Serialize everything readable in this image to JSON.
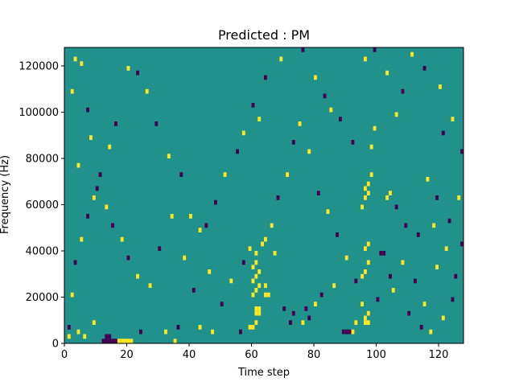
{
  "chart_data": {
    "type": "heatmap",
    "title": "Predicted : PM",
    "xlabel": "Time step",
    "ylabel": "Frequency (Hz)",
    "xlim": [
      0,
      128
    ],
    "ylim": [
      0,
      128000
    ],
    "x_ticks": [
      0,
      20,
      40,
      60,
      80,
      100,
      120
    ],
    "y_ticks": [
      0,
      20000,
      40000,
      60000,
      80000,
      100000,
      120000
    ],
    "grid": false,
    "legend": "none",
    "colormap": "viridis",
    "color_levels": {
      "low": "#440154",
      "mid": "#21918c",
      "high": "#fde725"
    },
    "background_value": "mid",
    "bin_width_hz": 2000,
    "cells": [
      {
        "t": 12,
        "f": 2000,
        "v": "low"
      },
      {
        "t": 13,
        "f": 2000,
        "v": "low"
      },
      {
        "t": 14,
        "f": 2000,
        "v": "low"
      },
      {
        "t": 15,
        "f": 2000,
        "v": "low"
      },
      {
        "t": 16,
        "f": 2000,
        "v": "low"
      },
      {
        "t": 13,
        "f": 4000,
        "v": "low"
      },
      {
        "t": 14,
        "f": 4000,
        "v": "low"
      },
      {
        "t": 17,
        "f": 2000,
        "v": "high"
      },
      {
        "t": 18,
        "f": 2000,
        "v": "high"
      },
      {
        "t": 19,
        "f": 2000,
        "v": "high"
      },
      {
        "t": 20,
        "f": 2000,
        "v": "high"
      },
      {
        "t": 21,
        "f": 2000,
        "v": "high"
      },
      {
        "t": 1,
        "f": 4000,
        "v": "high"
      },
      {
        "t": 4,
        "f": 6000,
        "v": "high"
      },
      {
        "t": 6,
        "f": 4000,
        "v": "high"
      },
      {
        "t": 9,
        "f": 10000,
        "v": "high"
      },
      {
        "t": 24,
        "f": 6000,
        "v": "low"
      },
      {
        "t": 32,
        "f": 6000,
        "v": "high"
      },
      {
        "t": 35,
        "f": 2000,
        "v": "high"
      },
      {
        "t": 36,
        "f": 8000,
        "v": "low"
      },
      {
        "t": 43,
        "f": 8000,
        "v": "high"
      },
      {
        "t": 47,
        "f": 6000,
        "v": "high"
      },
      {
        "t": 56,
        "f": 6000,
        "v": "low"
      },
      {
        "t": 59,
        "f": 8000,
        "v": "high"
      },
      {
        "t": 60,
        "f": 8000,
        "v": "high"
      },
      {
        "t": 61,
        "f": 10000,
        "v": "high"
      },
      {
        "t": 61,
        "f": 14000,
        "v": "high"
      },
      {
        "t": 62,
        "f": 14000,
        "v": "high"
      },
      {
        "t": 61,
        "f": 16000,
        "v": "high"
      },
      {
        "t": 62,
        "f": 16000,
        "v": "high"
      },
      {
        "t": 60,
        "f": 22000,
        "v": "high"
      },
      {
        "t": 61,
        "f": 24000,
        "v": "high"
      },
      {
        "t": 62,
        "f": 26000,
        "v": "high"
      },
      {
        "t": 60,
        "f": 28000,
        "v": "high"
      },
      {
        "t": 61,
        "f": 30000,
        "v": "high"
      },
      {
        "t": 62,
        "f": 32000,
        "v": "high"
      },
      {
        "t": 60,
        "f": 34000,
        "v": "high"
      },
      {
        "t": 61,
        "f": 36000,
        "v": "high"
      },
      {
        "t": 61,
        "f": 40000,
        "v": "high"
      },
      {
        "t": 59,
        "f": 42000,
        "v": "high"
      },
      {
        "t": 64,
        "f": 22000,
        "v": "high"
      },
      {
        "t": 65,
        "f": 22000,
        "v": "high"
      },
      {
        "t": 64,
        "f": 26000,
        "v": "high"
      },
      {
        "t": 63,
        "f": 44000,
        "v": "high"
      },
      {
        "t": 64,
        "f": 46000,
        "v": "high"
      },
      {
        "t": 67,
        "f": 40000,
        "v": "high"
      },
      {
        "t": 70,
        "f": 16000,
        "v": "low"
      },
      {
        "t": 72,
        "f": 10000,
        "v": "low"
      },
      {
        "t": 73,
        "f": 14000,
        "v": "low"
      },
      {
        "t": 76,
        "f": 10000,
        "v": "high"
      },
      {
        "t": 77,
        "f": 16000,
        "v": "low"
      },
      {
        "t": 78,
        "f": 12000,
        "v": "low"
      },
      {
        "t": 80,
        "f": 18000,
        "v": "high"
      },
      {
        "t": 82,
        "f": 22000,
        "v": "low"
      },
      {
        "t": 86,
        "f": 26000,
        "v": "high"
      },
      {
        "t": 89,
        "f": 6000,
        "v": "low"
      },
      {
        "t": 90,
        "f": 6000,
        "v": "low"
      },
      {
        "t": 91,
        "f": 6000,
        "v": "low"
      },
      {
        "t": 92,
        "f": 6000,
        "v": "high"
      },
      {
        "t": 93,
        "f": 10000,
        "v": "high"
      },
      {
        "t": 95,
        "f": 18000,
        "v": "high"
      },
      {
        "t": 96,
        "f": 10000,
        "v": "high"
      },
      {
        "t": 97,
        "f": 10000,
        "v": "high"
      },
      {
        "t": 96,
        "f": 12000,
        "v": "high"
      },
      {
        "t": 97,
        "f": 14000,
        "v": "high"
      },
      {
        "t": 95,
        "f": 30000,
        "v": "high"
      },
      {
        "t": 96,
        "f": 32000,
        "v": "high"
      },
      {
        "t": 97,
        "f": 36000,
        "v": "high"
      },
      {
        "t": 96,
        "f": 42000,
        "v": "high"
      },
      {
        "t": 97,
        "f": 44000,
        "v": "high"
      },
      {
        "t": 95,
        "f": 60000,
        "v": "high"
      },
      {
        "t": 96,
        "f": 64000,
        "v": "high"
      },
      {
        "t": 97,
        "f": 66000,
        "v": "high"
      },
      {
        "t": 96,
        "f": 68000,
        "v": "high"
      },
      {
        "t": 97,
        "f": 70000,
        "v": "high"
      },
      {
        "t": 98,
        "f": 74000,
        "v": "high"
      },
      {
        "t": 98,
        "f": 86000,
        "v": "high"
      },
      {
        "t": 101,
        "f": 40000,
        "v": "low"
      },
      {
        "t": 102,
        "f": 40000,
        "v": "low"
      },
      {
        "t": 104,
        "f": 30000,
        "v": "low"
      },
      {
        "t": 103,
        "f": 64000,
        "v": "high"
      },
      {
        "t": 104,
        "f": 66000,
        "v": "high"
      },
      {
        "t": 106,
        "f": 60000,
        "v": "low"
      },
      {
        "t": 109,
        "f": 52000,
        "v": "low"
      },
      {
        "t": 110,
        "f": 14000,
        "v": "low"
      },
      {
        "t": 114,
        "f": 8000,
        "v": "low"
      },
      {
        "t": 117,
        "f": 6000,
        "v": "high"
      },
      {
        "t": 121,
        "f": 12000,
        "v": "high"
      },
      {
        "t": 124,
        "f": 20000,
        "v": "low"
      },
      {
        "t": 125,
        "f": 30000,
        "v": "low"
      },
      {
        "t": 127,
        "f": 44000,
        "v": "low"
      },
      {
        "t": 122,
        "f": 42000,
        "v": "high"
      },
      {
        "t": 118,
        "f": 52000,
        "v": "high"
      },
      {
        "t": 113,
        "f": 48000,
        "v": "low"
      },
      {
        "t": 116,
        "f": 72000,
        "v": "high"
      },
      {
        "t": 119,
        "f": 64000,
        "v": "low"
      },
      {
        "t": 127,
        "f": 84000,
        "v": "low"
      },
      {
        "t": 121,
        "f": 92000,
        "v": "low"
      },
      {
        "t": 124,
        "f": 98000,
        "v": "high"
      },
      {
        "t": 120,
        "f": 112000,
        "v": "high"
      },
      {
        "t": 115,
        "f": 120000,
        "v": "low"
      },
      {
        "t": 111,
        "f": 126000,
        "v": "high"
      },
      {
        "t": 99,
        "f": 128000,
        "v": "low"
      },
      {
        "t": 96,
        "f": 124000,
        "v": "high"
      },
      {
        "t": 103,
        "f": 118000,
        "v": "high"
      },
      {
        "t": 108,
        "f": 110000,
        "v": "low"
      },
      {
        "t": 106,
        "f": 100000,
        "v": "high"
      },
      {
        "t": 99,
        "f": 94000,
        "v": "high"
      },
      {
        "t": 92,
        "f": 88000,
        "v": "low"
      },
      {
        "t": 88,
        "f": 98000,
        "v": "low"
      },
      {
        "t": 85,
        "f": 102000,
        "v": "high"
      },
      {
        "t": 83,
        "f": 108000,
        "v": "low"
      },
      {
        "t": 80,
        "f": 116000,
        "v": "high"
      },
      {
        "t": 76,
        "f": 128000,
        "v": "low"
      },
      {
        "t": 69,
        "f": 124000,
        "v": "high"
      },
      {
        "t": 64,
        "f": 116000,
        "v": "low"
      },
      {
        "t": 62,
        "f": 98000,
        "v": "high"
      },
      {
        "t": 60,
        "f": 104000,
        "v": "low"
      },
      {
        "t": 57,
        "f": 92000,
        "v": "high"
      },
      {
        "t": 55,
        "f": 84000,
        "v": "low"
      },
      {
        "t": 51,
        "f": 74000,
        "v": "high"
      },
      {
        "t": 48,
        "f": 62000,
        "v": "low"
      },
      {
        "t": 45,
        "f": 52000,
        "v": "low"
      },
      {
        "t": 43,
        "f": 50000,
        "v": "high"
      },
      {
        "t": 40,
        "f": 56000,
        "v": "high"
      },
      {
        "t": 37,
        "f": 74000,
        "v": "low"
      },
      {
        "t": 33,
        "f": 82000,
        "v": "high"
      },
      {
        "t": 29,
        "f": 96000,
        "v": "low"
      },
      {
        "t": 26,
        "f": 110000,
        "v": "high"
      },
      {
        "t": 23,
        "f": 118000,
        "v": "low"
      },
      {
        "t": 20,
        "f": 120000,
        "v": "high"
      },
      {
        "t": 16,
        "f": 96000,
        "v": "low"
      },
      {
        "t": 14,
        "f": 86000,
        "v": "high"
      },
      {
        "t": 11,
        "f": 74000,
        "v": "low"
      },
      {
        "t": 9,
        "f": 64000,
        "v": "high"
      },
      {
        "t": 7,
        "f": 56000,
        "v": "low"
      },
      {
        "t": 5,
        "f": 46000,
        "v": "high"
      },
      {
        "t": 3,
        "f": 36000,
        "v": "low"
      },
      {
        "t": 2,
        "f": 22000,
        "v": "high"
      },
      {
        "t": 1,
        "f": 8000,
        "v": "low"
      },
      {
        "t": 3,
        "f": 124000,
        "v": "high"
      },
      {
        "t": 5,
        "f": 122000,
        "v": "high"
      },
      {
        "t": 2,
        "f": 110000,
        "v": "high"
      },
      {
        "t": 7,
        "f": 102000,
        "v": "low"
      },
      {
        "t": 8,
        "f": 90000,
        "v": "high"
      },
      {
        "t": 4,
        "f": 78000,
        "v": "high"
      },
      {
        "t": 10,
        "f": 68000,
        "v": "low"
      },
      {
        "t": 13,
        "f": 60000,
        "v": "high"
      },
      {
        "t": 15,
        "f": 52000,
        "v": "low"
      },
      {
        "t": 18,
        "f": 46000,
        "v": "high"
      },
      {
        "t": 20,
        "f": 38000,
        "v": "low"
      },
      {
        "t": 23,
        "f": 30000,
        "v": "high"
      },
      {
        "t": 27,
        "f": 26000,
        "v": "high"
      },
      {
        "t": 30,
        "f": 42000,
        "v": "low"
      },
      {
        "t": 34,
        "f": 56000,
        "v": "high"
      },
      {
        "t": 38,
        "f": 38000,
        "v": "high"
      },
      {
        "t": 41,
        "f": 24000,
        "v": "low"
      },
      {
        "t": 46,
        "f": 32000,
        "v": "high"
      },
      {
        "t": 50,
        "f": 18000,
        "v": "low"
      },
      {
        "t": 53,
        "f": 28000,
        "v": "high"
      },
      {
        "t": 57,
        "f": 36000,
        "v": "low"
      },
      {
        "t": 66,
        "f": 52000,
        "v": "high"
      },
      {
        "t": 68,
        "f": 64000,
        "v": "low"
      },
      {
        "t": 71,
        "f": 74000,
        "v": "high"
      },
      {
        "t": 73,
        "f": 88000,
        "v": "low"
      },
      {
        "t": 75,
        "f": 96000,
        "v": "high"
      },
      {
        "t": 78,
        "f": 84000,
        "v": "high"
      },
      {
        "t": 81,
        "f": 66000,
        "v": "low"
      },
      {
        "t": 84,
        "f": 58000,
        "v": "high"
      },
      {
        "t": 87,
        "f": 48000,
        "v": "low"
      },
      {
        "t": 90,
        "f": 38000,
        "v": "high"
      },
      {
        "t": 93,
        "f": 28000,
        "v": "low"
      },
      {
        "t": 100,
        "f": 20000,
        "v": "low"
      },
      {
        "t": 105,
        "f": 24000,
        "v": "high"
      },
      {
        "t": 108,
        "f": 36000,
        "v": "high"
      },
      {
        "t": 112,
        "f": 28000,
        "v": "low"
      },
      {
        "t": 115,
        "f": 18000,
        "v": "high"
      },
      {
        "t": 119,
        "f": 34000,
        "v": "high"
      },
      {
        "t": 123,
        "f": 54000,
        "v": "low"
      },
      {
        "t": 126,
        "f": 64000,
        "v": "high"
      }
    ]
  }
}
